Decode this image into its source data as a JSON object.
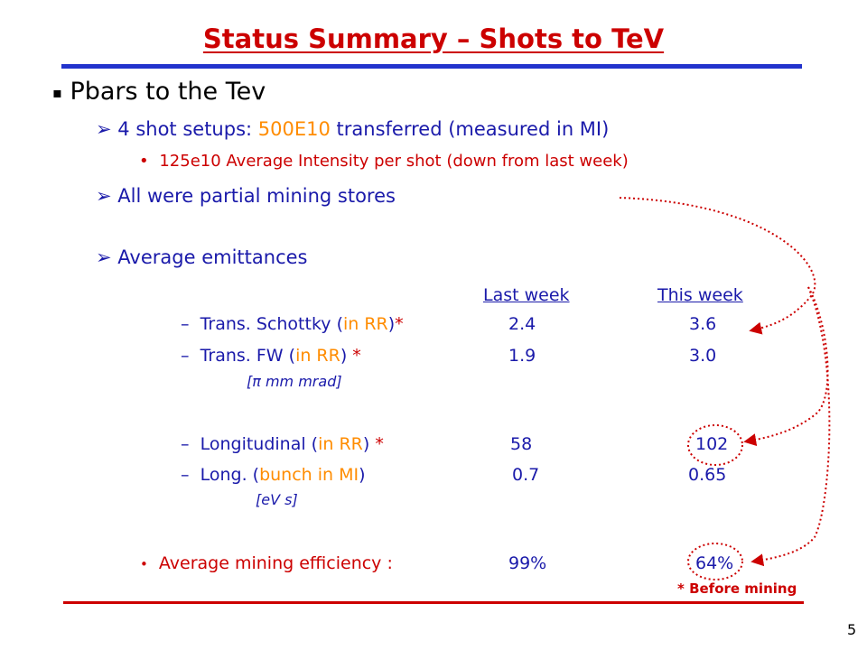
{
  "title": "Status Summary – Shots to TeV",
  "main_bullet": {
    "marker": "▪",
    "text": "Pbars to the Tev"
  },
  "sub1": {
    "marker": "➢",
    "pre": "4 shot setups: ",
    "value": "500E10",
    "post": " transferred (measured in MI)"
  },
  "sub1_dot": {
    "marker": "•",
    "text": "125e10 Average Intensity per shot (down from last week)"
  },
  "sub2": {
    "marker": "➢",
    "text": "All were partial mining stores"
  },
  "sub3": {
    "marker": "➢",
    "text": "Average emittances"
  },
  "columns": {
    "last": "Last week",
    "this": "This week"
  },
  "rows": [
    {
      "dash": "–",
      "a": "Trans. Schottky (",
      "b": "in RR",
      "c": ")",
      "star": "*",
      "last": "2.4",
      "this": "3.6"
    },
    {
      "dash": "–",
      "a": "Trans. FW (",
      "b": "in RR",
      "c": ") ",
      "star": "*",
      "last": "1.9",
      "this": "3.0"
    },
    {
      "dash": "–",
      "a": "Longitudinal (",
      "b": "in RR",
      "c": ") ",
      "star": "*",
      "last": "58",
      "this": "102"
    },
    {
      "dash": "–",
      "a": "Long.  (",
      "b": "bunch in MI",
      "c": ")",
      "star": "",
      "last": "0.7",
      "this": "0.65"
    }
  ],
  "units1": "[π mm mrad]",
  "units2": "[eV s]",
  "mining": {
    "marker": "•",
    "label": "Average mining efficiency :",
    "last": "99%",
    "this": "64%"
  },
  "note": "* Before mining",
  "page_number": "5",
  "colors": {
    "title": "#cc0000",
    "rule_top": "#2233cc",
    "rule_bottom": "#cc0000",
    "accent": "#ff8c00",
    "arrows": "#cc0000"
  }
}
